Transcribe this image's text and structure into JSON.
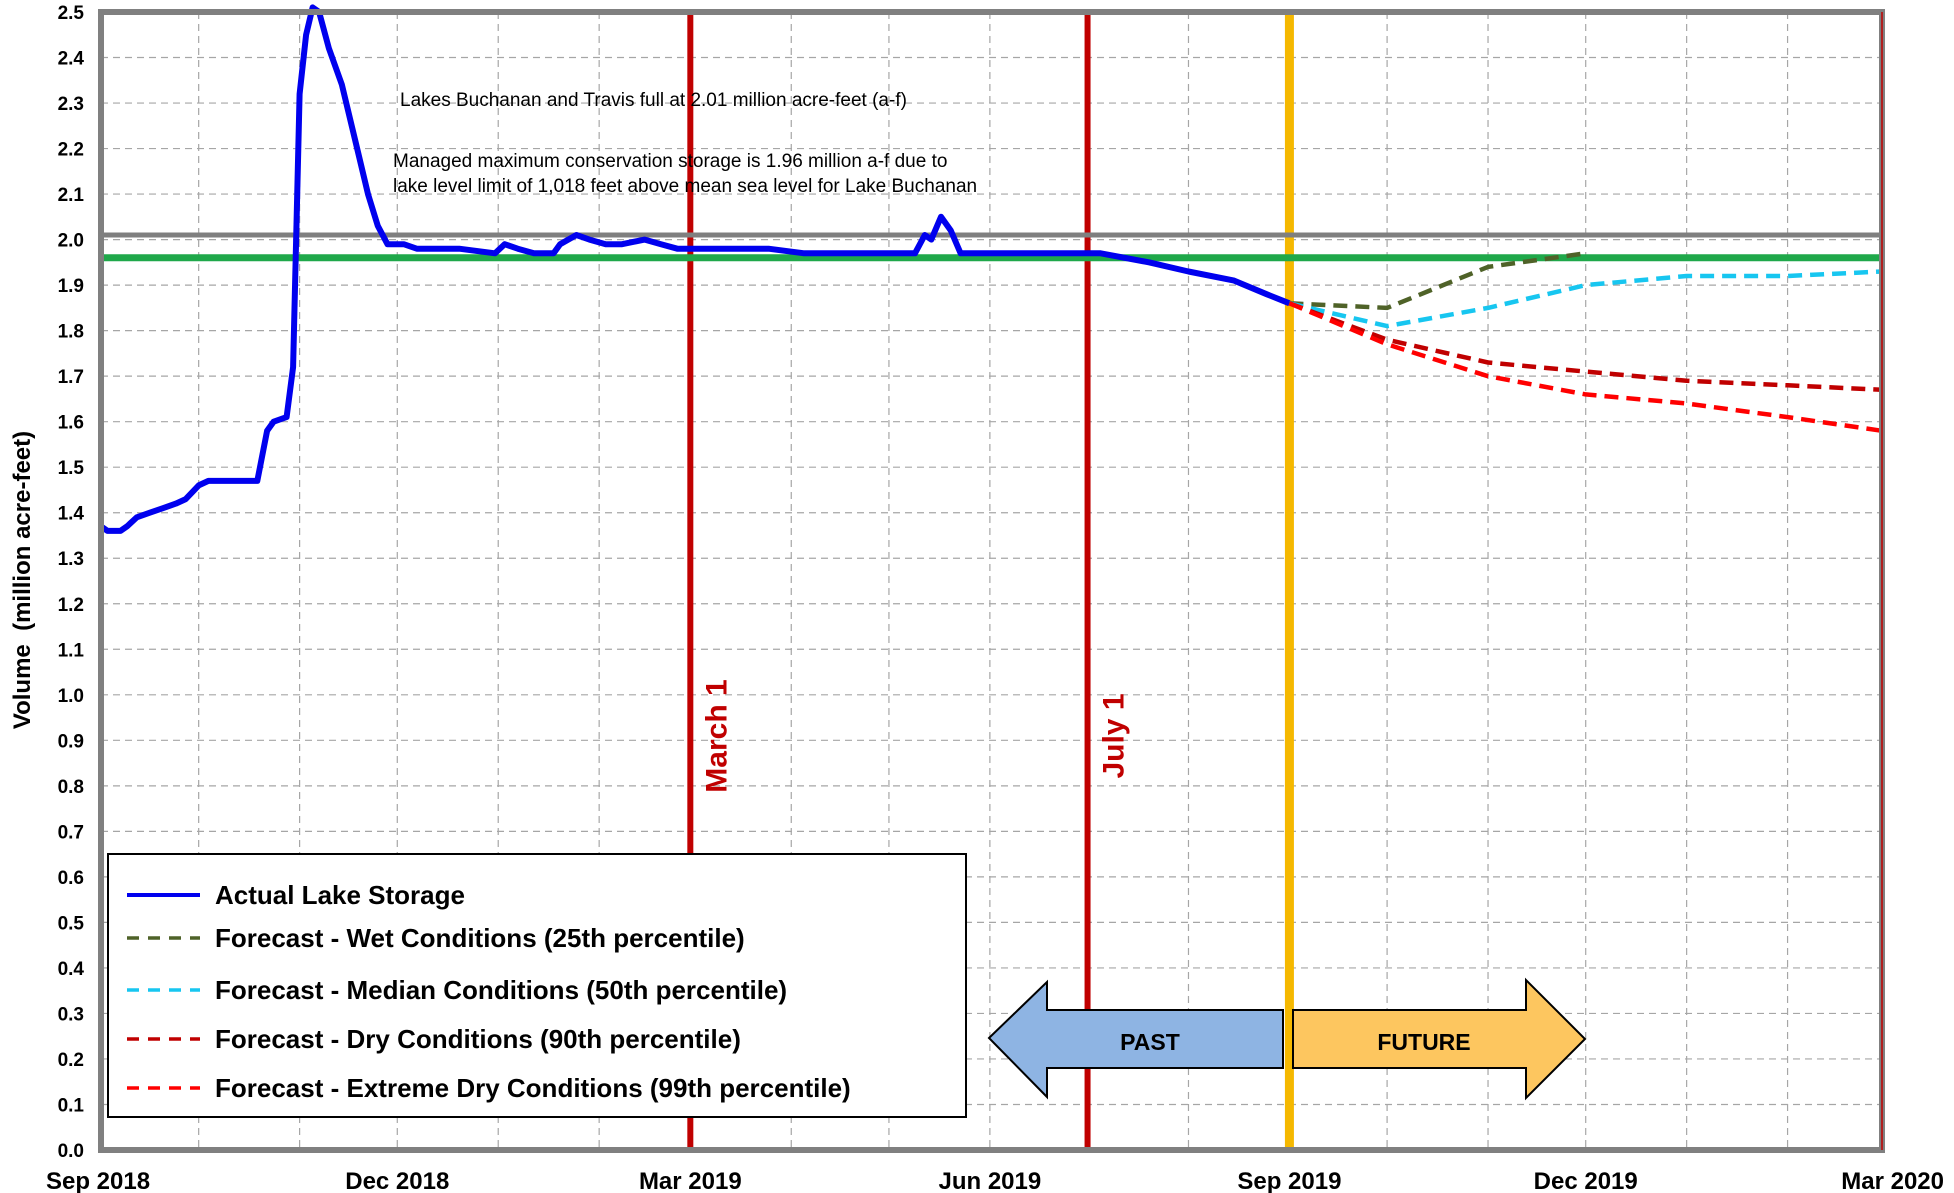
{
  "chart_data": {
    "type": "line",
    "ylabel": "Volume  (million acre-feet)",
    "xlabel": "",
    "ylim": [
      0.0,
      2.5
    ],
    "yticks": [
      0.0,
      0.1,
      0.2,
      0.3,
      0.4,
      0.5,
      0.6,
      0.7,
      0.8,
      0.9,
      1.0,
      1.1,
      1.2,
      1.3,
      1.4,
      1.5,
      1.6,
      1.7,
      1.8,
      1.9,
      2.0,
      2.1,
      2.2,
      2.3,
      2.4,
      2.5
    ],
    "ytick_labels": [
      "0.0",
      "0.1",
      "0.2",
      "0.3",
      "0.4",
      "0.5",
      "0.6",
      "0.7",
      "0.8",
      "0.9",
      "1.0",
      "1.1",
      "1.2",
      "1.3",
      "1.4",
      "1.5",
      "1.6",
      "1.7",
      "1.8",
      "1.9",
      "2.0",
      "2.1",
      "2.2",
      "2.3",
      "2.4",
      "2.5"
    ],
    "xlim": [
      "2018-09-01",
      "2020-03-01"
    ],
    "xticks": [
      {
        "date": "2018-09-01",
        "label": "Sep 2018"
      },
      {
        "date": "2018-12-01",
        "label": "Dec 2018"
      },
      {
        "date": "2019-03-01",
        "label": "Mar 2019"
      },
      {
        "date": "2019-06-01",
        "label": "Jun 2019"
      },
      {
        "date": "2019-09-01",
        "label": "Sep 2019"
      },
      {
        "date": "2019-12-01",
        "label": "Dec 2019"
      },
      {
        "date": "2020-03-01",
        "label": "Mar 2020"
      }
    ],
    "minor_gridlines": [
      "2018-10-01",
      "2018-11-01",
      "2019-01-01",
      "2019-02-01",
      "2019-04-01",
      "2019-05-01",
      "2019-07-01",
      "2019-08-01",
      "2019-10-01",
      "2019-11-01",
      "2020-01-01",
      "2020-02-01"
    ],
    "grid": true,
    "reference_lines": [
      {
        "y": 2.01,
        "color": "#7f7f7f",
        "label": "Lakes Buchanan and Travis full at 2.01 million acre-feet (a-f)"
      },
      {
        "y": 1.96,
        "color": "#1fa84a",
        "label_lines": [
          "Managed maximum conservation storage is 1.96 million a-f due to",
          "lake level limit of 1,018 feet above mean sea level for Lake Buchanan"
        ]
      }
    ],
    "vertical_markers": [
      {
        "date": "2019-03-01",
        "label": "March 1",
        "color": "#c00000"
      },
      {
        "date": "2019-07-01",
        "label": "July 1",
        "color": "#c00000"
      },
      {
        "date": "2019-09-01",
        "label": "",
        "color": "#f5b800"
      }
    ],
    "arrows": {
      "past": "PAST",
      "future": "FUTURE",
      "past_color": "#8eb4e3",
      "future_color": "#fdc65f"
    },
    "legend_position": "bottom-left",
    "series": [
      {
        "name": "Actual Lake Storage",
        "color": "#0000ee",
        "style": "solid",
        "points": [
          [
            "2018-09-01",
            1.37
          ],
          [
            "2018-09-03",
            1.36
          ],
          [
            "2018-09-07",
            1.36
          ],
          [
            "2018-09-09",
            1.37
          ],
          [
            "2018-09-12",
            1.39
          ],
          [
            "2018-09-16",
            1.4
          ],
          [
            "2018-09-20",
            1.41
          ],
          [
            "2018-09-24",
            1.42
          ],
          [
            "2018-09-27",
            1.43
          ],
          [
            "2018-10-01",
            1.46
          ],
          [
            "2018-10-04",
            1.47
          ],
          [
            "2018-10-10",
            1.47
          ],
          [
            "2018-10-15",
            1.47
          ],
          [
            "2018-10-19",
            1.47
          ],
          [
            "2018-10-22",
            1.58
          ],
          [
            "2018-10-24",
            1.6
          ],
          [
            "2018-10-28",
            1.61
          ],
          [
            "2018-10-30",
            1.72
          ],
          [
            "2018-11-01",
            2.32
          ],
          [
            "2018-11-03",
            2.45
          ],
          [
            "2018-11-05",
            2.51
          ],
          [
            "2018-11-07",
            2.5
          ],
          [
            "2018-11-10",
            2.42
          ],
          [
            "2018-11-14",
            2.34
          ],
          [
            "2018-11-18",
            2.22
          ],
          [
            "2018-11-22",
            2.1
          ],
          [
            "2018-11-25",
            2.03
          ],
          [
            "2018-11-28",
            1.99
          ],
          [
            "2018-12-03",
            1.99
          ],
          [
            "2018-12-07",
            1.98
          ],
          [
            "2018-12-12",
            1.98
          ],
          [
            "2018-12-20",
            1.98
          ],
          [
            "2018-12-31",
            1.97
          ],
          [
            "2019-01-03",
            1.99
          ],
          [
            "2019-01-07",
            1.98
          ],
          [
            "2019-01-12",
            1.97
          ],
          [
            "2019-01-18",
            1.97
          ],
          [
            "2019-01-20",
            1.99
          ],
          [
            "2019-01-25",
            2.01
          ],
          [
            "2019-01-29",
            2.0
          ],
          [
            "2019-02-03",
            1.99
          ],
          [
            "2019-02-08",
            1.99
          ],
          [
            "2019-02-15",
            2.0
          ],
          [
            "2019-02-20",
            1.99
          ],
          [
            "2019-02-25",
            1.98
          ],
          [
            "2019-03-05",
            1.98
          ],
          [
            "2019-03-12",
            1.98
          ],
          [
            "2019-03-25",
            1.98
          ],
          [
            "2019-04-05",
            1.97
          ],
          [
            "2019-04-15",
            1.97
          ],
          [
            "2019-04-25",
            1.97
          ],
          [
            "2019-05-05",
            1.97
          ],
          [
            "2019-05-09",
            1.97
          ],
          [
            "2019-05-12",
            2.01
          ],
          [
            "2019-05-14",
            2.0
          ],
          [
            "2019-05-17",
            2.05
          ],
          [
            "2019-05-20",
            2.02
          ],
          [
            "2019-05-23",
            1.97
          ],
          [
            "2019-05-30",
            1.97
          ],
          [
            "2019-06-15",
            1.97
          ],
          [
            "2019-06-28",
            1.97
          ],
          [
            "2019-07-05",
            1.97
          ],
          [
            "2019-07-20",
            1.95
          ],
          [
            "2019-08-01",
            1.93
          ],
          [
            "2019-08-15",
            1.91
          ],
          [
            "2019-08-25",
            1.88
          ],
          [
            "2019-09-01",
            1.86
          ]
        ]
      },
      {
        "name": "Forecast - Wet Conditions (25th percentile)",
        "color": "#4f6228",
        "style": "dashed",
        "points": [
          [
            "2019-09-01",
            1.86
          ],
          [
            "2019-10-01",
            1.85
          ],
          [
            "2019-11-01",
            1.94
          ],
          [
            "2019-12-01",
            1.97
          ]
        ]
      },
      {
        "name": "Forecast - Median Conditions (50th percentile)",
        "color": "#17c6f0",
        "style": "dashed",
        "points": [
          [
            "2019-09-01",
            1.86
          ],
          [
            "2019-10-01",
            1.81
          ],
          [
            "2019-11-01",
            1.85
          ],
          [
            "2019-12-01",
            1.9
          ],
          [
            "2020-01-01",
            1.92
          ],
          [
            "2020-02-01",
            1.92
          ],
          [
            "2020-03-01",
            1.93
          ]
        ]
      },
      {
        "name": "Forecast - Dry Conditions (90th percentile)",
        "color": "#c00000",
        "style": "dashed",
        "points": [
          [
            "2019-09-01",
            1.86
          ],
          [
            "2019-10-01",
            1.78
          ],
          [
            "2019-11-01",
            1.73
          ],
          [
            "2019-12-01",
            1.71
          ],
          [
            "2020-01-01",
            1.69
          ],
          [
            "2020-02-01",
            1.68
          ],
          [
            "2020-03-01",
            1.67
          ]
        ]
      },
      {
        "name": "Forecast - Extreme Dry Conditions (99th percentile)",
        "color": "#ff0000",
        "style": "dashed",
        "points": [
          [
            "2019-09-01",
            1.86
          ],
          [
            "2019-10-01",
            1.77
          ],
          [
            "2019-11-01",
            1.7
          ],
          [
            "2019-12-01",
            1.66
          ],
          [
            "2020-01-01",
            1.64
          ],
          [
            "2020-02-01",
            1.61
          ],
          [
            "2020-03-01",
            1.58
          ]
        ]
      }
    ]
  }
}
